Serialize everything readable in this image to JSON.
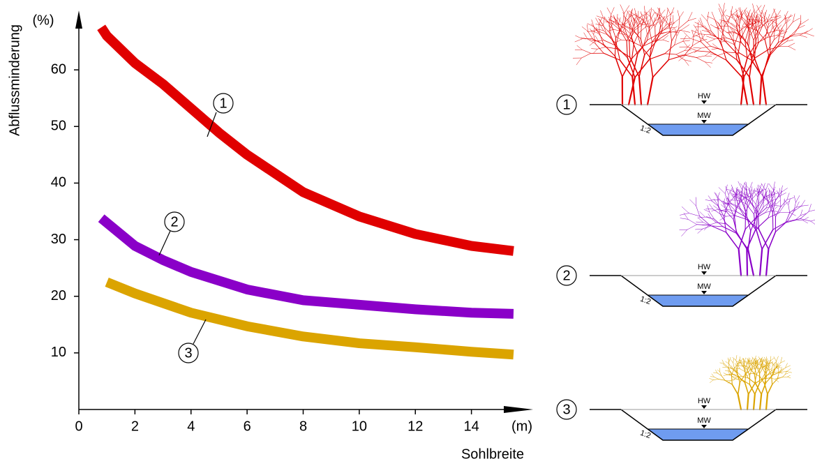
{
  "chart_data": {
    "type": "line",
    "y_axis_label": "Abflussminderung",
    "y_unit": "(%)",
    "x_axis_label": "Sohlbreite",
    "x_unit": "(m)",
    "xlim": [
      0,
      16
    ],
    "ylim": [
      0,
      70
    ],
    "xticks": [
      0,
      2,
      4,
      6,
      8,
      10,
      12,
      14
    ],
    "yticks": [
      10,
      20,
      30,
      40,
      50,
      60
    ],
    "series": [
      {
        "name": "1",
        "color": "#e00000",
        "x": [
          0.8,
          1,
          2,
          3,
          4,
          5,
          6,
          8,
          10,
          12,
          14,
          15.5
        ],
        "values": [
          67.5,
          66,
          61.2,
          57.5,
          53.2,
          48.9,
          45,
          38.4,
          34.1,
          31,
          28.9,
          28
        ]
      },
      {
        "name": "2",
        "color": "#8a00c8",
        "x": [
          0.8,
          2,
          3,
          4,
          6,
          8,
          10,
          12,
          14,
          15.5
        ],
        "values": [
          33.8,
          28.9,
          26.4,
          24.3,
          21.2,
          19.3,
          18.5,
          17.7,
          17.1,
          16.9
        ]
      },
      {
        "name": "3",
        "color": "#dba400",
        "x": [
          1,
          2,
          4,
          6,
          8,
          10,
          12,
          14,
          15.5
        ],
        "values": [
          22.5,
          20.5,
          17.1,
          14.7,
          12.9,
          11.7,
          11,
          10.2,
          9.7
        ]
      }
    ]
  },
  "diagrams": [
    {
      "label": "1",
      "high_water": "HW",
      "mean_water": "MW",
      "slope": "1:2"
    },
    {
      "label": "2",
      "high_water": "HW",
      "mean_water": "MW",
      "slope": "1:2"
    },
    {
      "label": "3",
      "high_water": "HW",
      "mean_water": "MW",
      "slope": "1:2"
    }
  ]
}
